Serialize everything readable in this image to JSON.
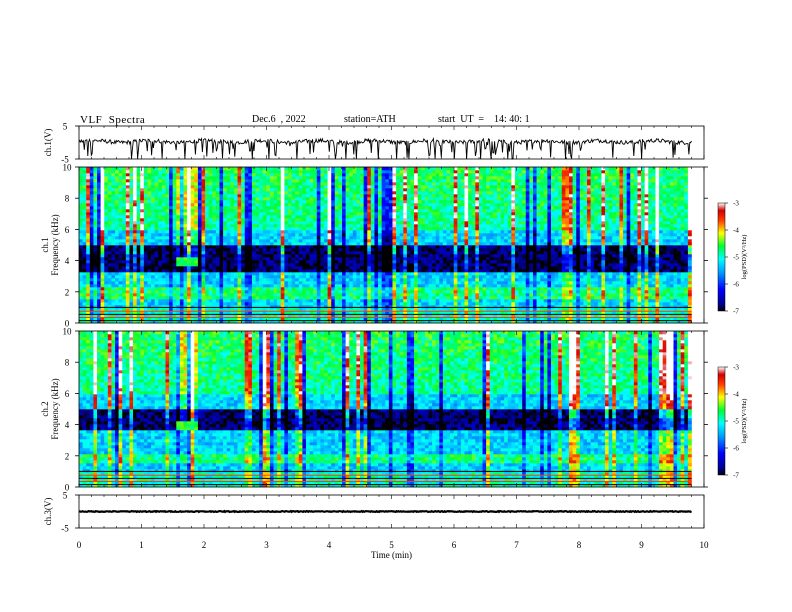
{
  "header": {
    "title": "VLF  Spectra",
    "date": "Dec.6  , 2022",
    "station": "station=ATH",
    "start": "start  UT  =    14: 40: 1"
  },
  "chart_data": [
    {
      "type": "line",
      "panel": "ch1-waveform",
      "ylabel": "ch.1(V)",
      "ylim": [
        -5,
        5
      ],
      "yticks": [
        "5",
        "-5"
      ],
      "xlim": [
        0,
        10
      ],
      "baseline_v": 0.3,
      "note_data": "noisy waveform around baseline with downward spikes; data span 0 to 9.8 min"
    },
    {
      "type": "heatmap",
      "panel": "ch1-spectrogram",
      "ylabel": "ch.1\nFrequency  (kHz)",
      "ylim": [
        0,
        10
      ],
      "yticks": [
        "0",
        "2",
        "4",
        "6",
        "8",
        "10"
      ],
      "xlim": [
        0,
        10
      ],
      "data_end_min": 9.8,
      "colorbar": {
        "label": "log(PSD)(V²/Hz)",
        "range": [
          -7,
          -3
        ],
        "ticks": [
          "-3",
          "-4",
          "-5",
          "-6",
          "-7"
        ]
      },
      "features": {
        "intense_band_khz": [
          1.6,
          2.4
        ],
        "dark_band_khz": [
          3.3,
          5.0
        ],
        "active_region_min": [
          1.55,
          1.9
        ],
        "active_region_khz": [
          3.7,
          4.2
        ]
      }
    },
    {
      "type": "heatmap",
      "panel": "ch2-spectrogram",
      "ylabel": "ch.2\nFrequency  (kHz)",
      "ylim": [
        0,
        10
      ],
      "yticks": [
        "0",
        "2",
        "4",
        "6",
        "8",
        "10"
      ],
      "xlim": [
        0,
        10
      ],
      "data_end_min": 9.8,
      "colorbar": {
        "label": "log(PSD)(V²/Hz)",
        "range": [
          -7,
          -3
        ],
        "ticks": [
          "-3",
          "-4",
          "-5",
          "-6",
          "-7"
        ]
      },
      "features": {
        "intense_band_khz": [
          1.6,
          2.1
        ],
        "dark_band_khz": [
          3.6,
          5.0
        ],
        "active_region_min": [
          1.55,
          1.9
        ],
        "active_region_khz": [
          3.6,
          4.2
        ]
      }
    },
    {
      "type": "line",
      "panel": "ch3-waveform",
      "ylabel": "ch.3(V)",
      "ylim": [
        -5,
        5
      ],
      "yticks": [
        "5",
        "-5"
      ],
      "xlim": [
        0,
        10
      ],
      "baseline_v": 0.0,
      "xlabel": "Time  (min)",
      "xticks": [
        "0",
        "1",
        "2",
        "3",
        "4",
        "5",
        "6",
        "7",
        "8",
        "9",
        "10"
      ]
    }
  ]
}
